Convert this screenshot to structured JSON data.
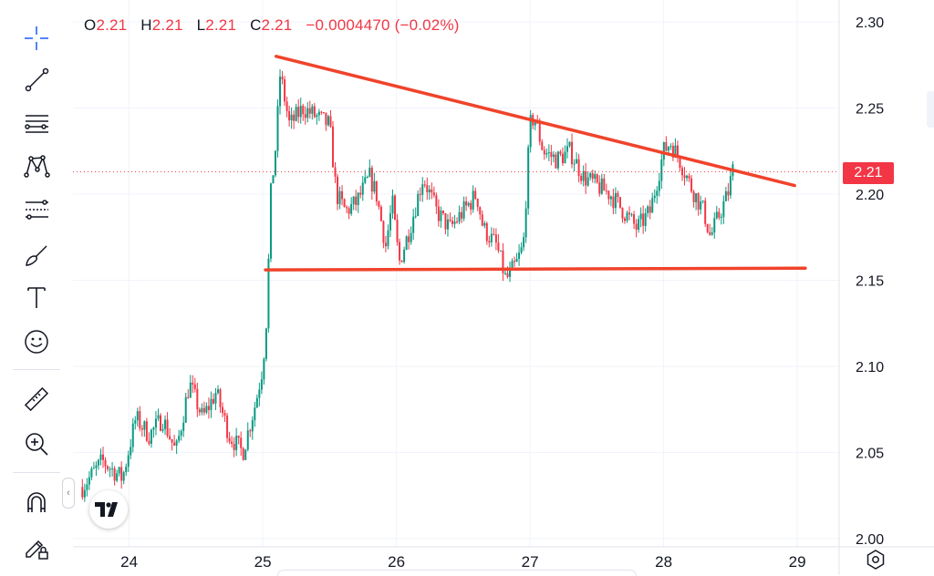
{
  "toolbar": {
    "tools": [
      "crosshair-icon",
      "trend-line-icon",
      "horizontal-lines-icon",
      "pattern-icon",
      "fib-icon",
      "brush-icon",
      "text-icon",
      "emoji-icon",
      "ruler-icon",
      "zoom-in-icon",
      "magnet-icon",
      "lock-drawing-icon"
    ]
  },
  "legend": {
    "o_label": "O",
    "o_value": "2.21",
    "h_label": "H",
    "h_value": "2.21",
    "l_label": "L",
    "l_value": "2.21",
    "c_label": "C",
    "c_value": "2.21",
    "change": "−0.0004470 (−0.02%)"
  },
  "logo": {
    "text": "TV"
  },
  "price_badge": "2.21",
  "colors": {
    "up": "#089981",
    "down": "#f23645",
    "trendline": "#f0432b",
    "grid": "#f0f3fa",
    "price_line": "#f23645"
  },
  "chart_data": {
    "type": "candlestick",
    "y_ticks": [
      "2.30",
      "2.25",
      "2.20",
      "2.15",
      "2.10",
      "2.05",
      "2.00"
    ],
    "ylim": [
      2.0,
      2.3
    ],
    "x_ticks": [
      "24",
      "25",
      "26",
      "27",
      "28",
      "29"
    ],
    "xlim": [
      23.6,
      29.3
    ],
    "last_price": 2.213,
    "trendlines": [
      {
        "name": "resistance",
        "x": [
          25.1,
          28.98
        ],
        "y": [
          2.28,
          2.205
        ]
      },
      {
        "name": "support",
        "x": [
          25.02,
          29.06
        ],
        "y": [
          2.156,
          2.157
        ]
      }
    ],
    "close_path": {
      "x": [
        23.65,
        23.8,
        23.95,
        24.05,
        24.15,
        24.25,
        24.35,
        24.45,
        24.55,
        24.65,
        24.75,
        24.85,
        24.95,
        25.0,
        25.03,
        25.06,
        25.1,
        25.13,
        25.2,
        25.3,
        25.4,
        25.5,
        25.55,
        25.62,
        25.7,
        25.8,
        25.85,
        25.92,
        25.97,
        26.02,
        26.1,
        26.2,
        26.3,
        26.4,
        26.5,
        26.6,
        26.65,
        26.75,
        26.82,
        26.9,
        26.95,
        27.0,
        27.03,
        27.1,
        27.2,
        27.3,
        27.4,
        27.5,
        27.6,
        27.7,
        27.8,
        27.9,
        28.0,
        28.05,
        28.12,
        28.2,
        28.3,
        28.35,
        28.4,
        28.48,
        28.52
      ],
      "y": [
        2.03,
        2.045,
        2.035,
        2.07,
        2.06,
        2.07,
        2.05,
        2.09,
        2.07,
        2.085,
        2.06,
        2.05,
        2.08,
        2.1,
        2.13,
        2.2,
        2.23,
        2.27,
        2.24,
        2.25,
        2.245,
        2.24,
        2.2,
        2.19,
        2.195,
        2.21,
        2.2,
        2.17,
        2.195,
        2.16,
        2.18,
        2.21,
        2.19,
        2.18,
        2.19,
        2.2,
        2.18,
        2.17,
        2.15,
        2.16,
        2.17,
        2.24,
        2.245,
        2.225,
        2.22,
        2.225,
        2.21,
        2.205,
        2.2,
        2.19,
        2.18,
        2.19,
        2.225,
        2.23,
        2.22,
        2.205,
        2.19,
        2.175,
        2.185,
        2.2,
        2.215
      ]
    }
  }
}
